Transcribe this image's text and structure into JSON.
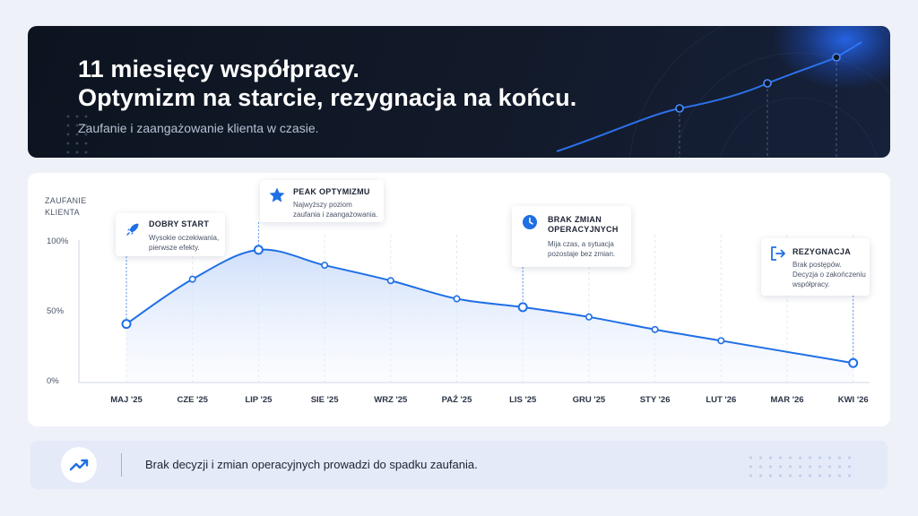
{
  "header": {
    "title_line1": "11 miesięcy współpracy.",
    "title_line2": "Optymizm na starcie, rezygnacja na końcu.",
    "subtitle": "Zaufanie i zaangażowanie klienta w czasie."
  },
  "chart_data": {
    "type": "line",
    "ylabel": "ZAUFANIE KLIENTA",
    "ylim": [
      0,
      100
    ],
    "yticks": [
      "0%",
      "50%",
      "100%"
    ],
    "categories": [
      "MAJ '25",
      "CZE '25",
      "LIP '25",
      "SIE '25",
      "WRZ '25",
      "PAŹ '25",
      "LIS '25",
      "GRU '25",
      "STY '26",
      "LUT '26",
      "MAR '26",
      "KWI '26"
    ],
    "values": [
      40,
      72,
      93,
      82,
      71,
      58,
      52,
      45,
      36,
      28,
      null,
      12
    ],
    "grid": "vertical-dashed",
    "annotations": [
      {
        "id": "start",
        "category": "MAJ '25",
        "title": "DOBRY START",
        "desc": [
          "Wysokie oczekiwania,",
          "pierwsze efekty."
        ],
        "icon": "rocket-icon"
      },
      {
        "id": "peak",
        "category": "LIP '25",
        "title": "PEAK OPTYMIZMU",
        "desc": [
          "Najwyższy poziom",
          "zaufania i zaangażowania."
        ],
        "icon": "star-icon"
      },
      {
        "id": "nochange",
        "category": "LIS '25",
        "title": [
          "BRAK ZMIAN",
          "OPERACYJNYCH"
        ],
        "desc": [
          "Mija czas, a sytuacja",
          "pozostaje bez zmian."
        ],
        "icon": "clock-icon"
      },
      {
        "id": "resign",
        "category": "KWI '26",
        "title": "REZYGNACJA",
        "desc": [
          "Brak postępów.",
          "Decyzja o zakończeniu",
          "współpracy."
        ],
        "icon": "exit-icon"
      }
    ]
  },
  "footer": {
    "text": "Brak decyzji i zmian operacyjnych prowadzi do spadku zaufania.",
    "icon": "trend-up-icon"
  },
  "colors": {
    "accent": "#1f6fe5",
    "dark": "#0f1724",
    "fill": "#dbe7fb"
  }
}
